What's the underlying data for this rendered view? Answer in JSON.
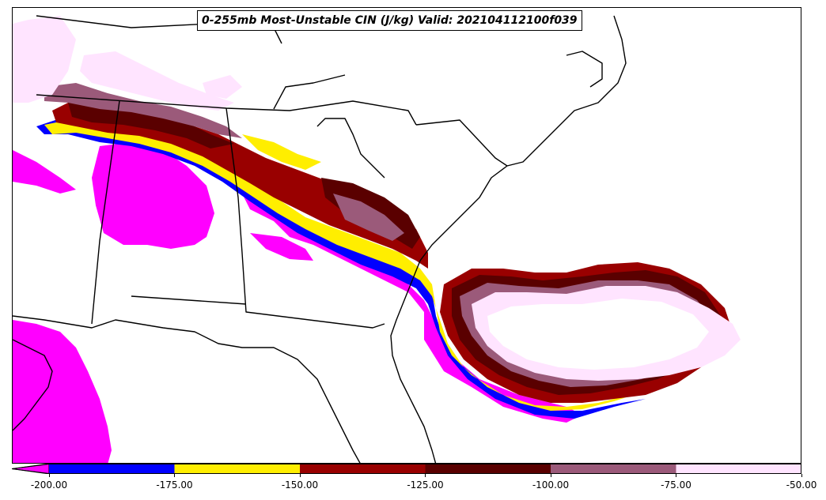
{
  "title": "0-255mb Most-Unstable CIN (J/kg) Valid: 202104112100f039",
  "colorbar": {
    "extend": "min",
    "bins": [
      {
        "from": -200,
        "to": -175,
        "color": "#0000ff"
      },
      {
        "from": -175,
        "to": -150,
        "color": "#ffee00"
      },
      {
        "from": -150,
        "to": -125,
        "color": "#990000"
      },
      {
        "from": -125,
        "to": -100,
        "color": "#5a0000"
      },
      {
        "from": -100,
        "to": -75,
        "color": "#9b5a7a"
      },
      {
        "from": -75,
        "to": -50,
        "color": "#ffe4ff"
      }
    ],
    "below_min_color": "#ff00ff",
    "ticks": [
      "-200.00",
      "-175.00",
      "-150.00",
      "-125.00",
      "-100.00",
      "-75.00",
      "-50.00"
    ]
  },
  "map": {
    "projection": "lambert",
    "region": "Southeastern United States and Gulf of Mexico",
    "coastline_color": "#000000"
  }
}
